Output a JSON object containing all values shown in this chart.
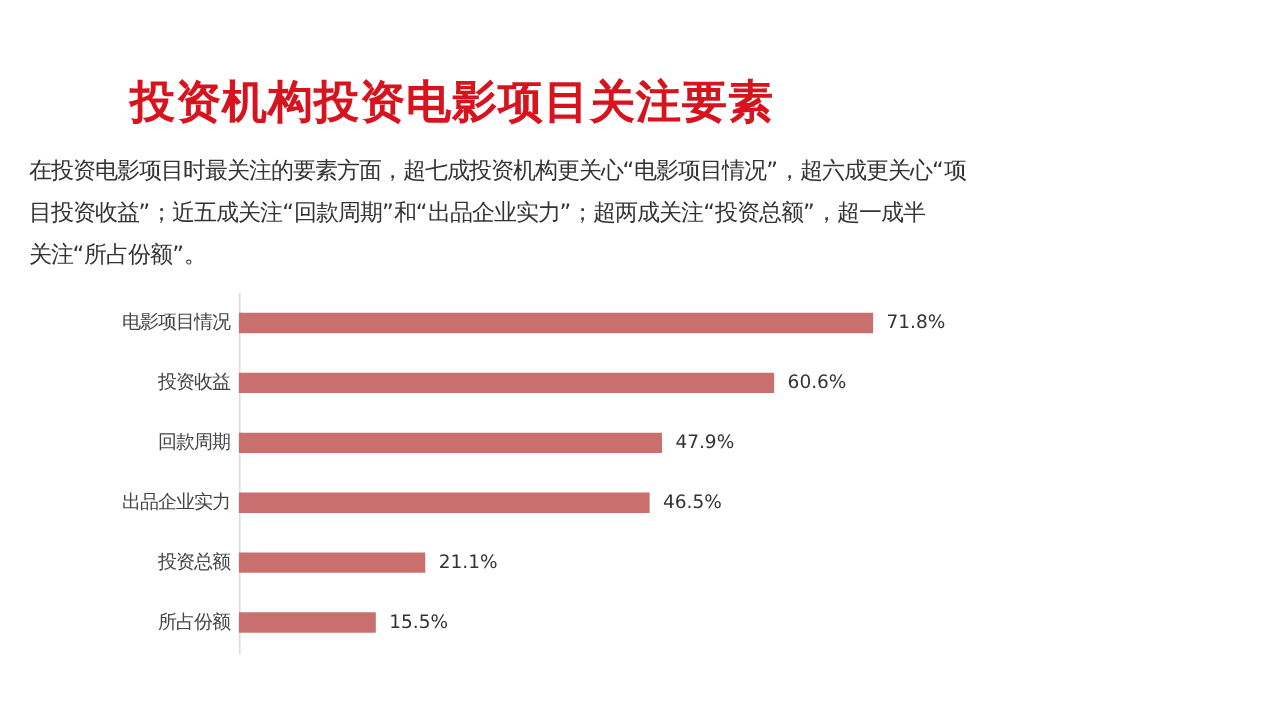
{
  "chart_data": {
    "type": "bar",
    "orientation": "horizontal",
    "title": "投资机构投资电影项目关注要素",
    "subtitle": [
      "在投资电影项目时最关注的要素方面，超七成投资机构更关心“电影项目情况”，超六成更关心“项",
      "目投资收益”；近五成关注“回款周期”和“出品企业实力”；超两成关注“投资总额”，超一成半",
      "关注“所占份额”。"
    ],
    "categories": [
      "电影项目情况",
      "投资收益",
      "回款周期",
      "出品企业实力",
      "投资总额",
      "所占份额"
    ],
    "values": [
      71.8,
      60.6,
      47.9,
      46.5,
      21.1,
      15.5
    ],
    "value_labels": [
      "71.8%",
      "60.6%",
      "47.9%",
      "46.5%",
      "21.1%",
      "15.5%"
    ],
    "color": "#c9706e",
    "grid": false
  }
}
